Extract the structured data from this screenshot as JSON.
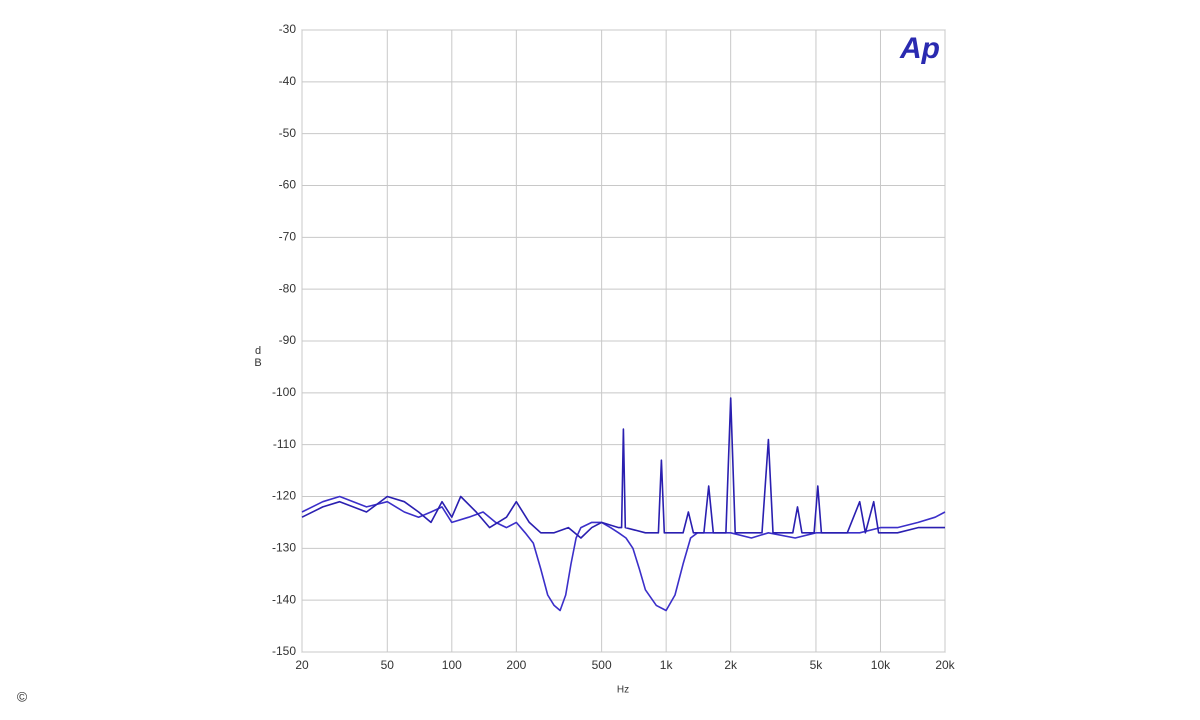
{
  "chart_data": {
    "type": "line",
    "xlabel": "Hz",
    "ylabel": "dB",
    "annotation": "Ap",
    "copyright": "©",
    "log_x": true,
    "grid": true,
    "xlim": [
      20,
      20000
    ],
    "ylim": [
      -150,
      -30
    ],
    "xticks": [
      20,
      50,
      100,
      200,
      500,
      {
        "value": 1000,
        "label": "1k"
      },
      {
        "value": 2000,
        "label": "2k"
      },
      {
        "value": 5000,
        "label": "5k"
      },
      {
        "value": 10000,
        "label": "10k"
      },
      {
        "value": 20000,
        "label": "20k"
      }
    ],
    "yticks": [
      -30,
      -40,
      -50,
      -60,
      -70,
      -80,
      -90,
      -100,
      -110,
      -120,
      -130,
      -140,
      -150
    ],
    "series": [
      {
        "color": "#3b2fc9",
        "x": [
          20,
          25,
          30,
          40,
          50,
          60,
          70,
          80,
          90,
          100,
          120,
          140,
          160,
          180,
          200,
          220,
          240,
          260,
          280,
          300,
          320,
          340,
          360,
          380,
          400,
          450,
          500,
          550,
          600,
          650,
          700,
          750,
          800,
          900,
          1000,
          1100,
          1200,
          1300,
          1400,
          1600,
          2000,
          2500,
          3000,
          4000,
          5000,
          6000,
          8000,
          10000,
          12000,
          15000,
          18000,
          20000
        ],
        "values": [
          -123,
          -121,
          -120,
          -122,
          -121,
          -123,
          -124,
          -123,
          -122,
          -125,
          -124,
          -123,
          -125,
          -126,
          -125,
          -127,
          -129,
          -134,
          -139,
          -141,
          -142,
          -139,
          -133,
          -128,
          -126,
          -125,
          -125,
          -126,
          -127,
          -128,
          -130,
          -134,
          -138,
          -141,
          -142,
          -139,
          -133,
          -128,
          -127,
          -127,
          -127,
          -128,
          -127,
          -128,
          -127,
          -127,
          -127,
          -126,
          -126,
          -125,
          -124,
          -123
        ]
      },
      {
        "color": "#2a1fb0",
        "x": [
          20,
          25,
          30,
          40,
          50,
          60,
          70,
          80,
          90,
          100,
          110,
          130,
          150,
          180,
          200,
          230,
          260,
          300,
          350,
          400,
          450,
          500,
          600,
          620,
          632,
          645,
          800,
          920,
          950,
          980,
          1200,
          1270,
          1340,
          1500,
          1580,
          1660,
          1900,
          2000,
          2100,
          2800,
          3000,
          3150,
          3900,
          4100,
          4300,
          4900,
          5100,
          5300,
          7000,
          8000,
          8500,
          9300,
          9800,
          12000,
          15000,
          20000
        ],
        "values": [
          -124,
          -122,
          -121,
          -123,
          -120,
          -121,
          -123,
          -125,
          -121,
          -124,
          -120,
          -123,
          -126,
          -124,
          -121,
          -125,
          -127,
          -127,
          -126,
          -128,
          -126,
          -125,
          -126,
          -126,
          -107,
          -126,
          -127,
          -127,
          -113,
          -127,
          -127,
          -123,
          -127,
          -127,
          -118,
          -127,
          -127,
          -101,
          -127,
          -127,
          -109,
          -127,
          -127,
          -122,
          -127,
          -127,
          -118,
          -127,
          -127,
          -121,
          -127,
          -121,
          -127,
          -127,
          -126,
          -126
        ]
      }
    ]
  }
}
